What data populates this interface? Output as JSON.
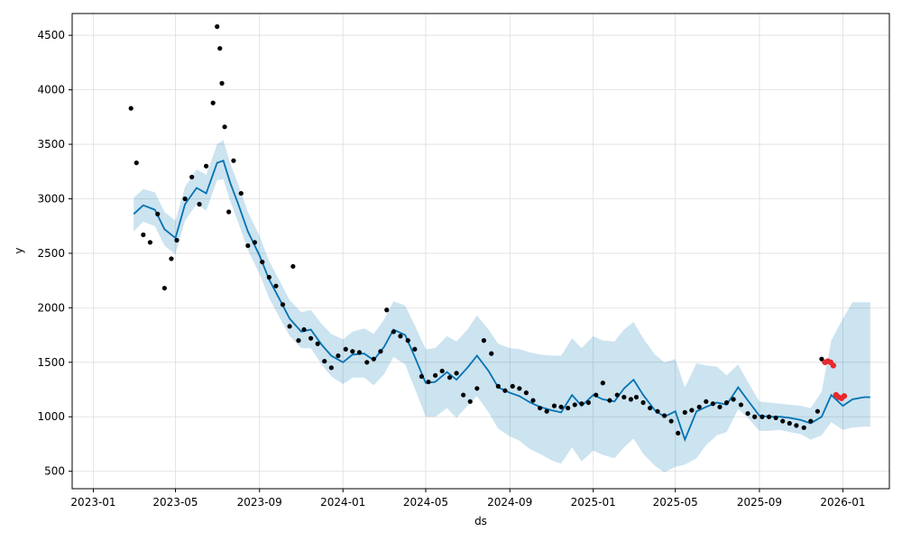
{
  "chart_data": {
    "type": "line",
    "title": "",
    "xlabel": "ds",
    "ylabel": "y",
    "xlim": [
      "2022-12-01",
      "2026-03-10"
    ],
    "ylim": [
      340,
      4700
    ],
    "grid": true,
    "x_ticks": [
      "2023-01",
      "2023-05",
      "2023-09",
      "2024-01",
      "2024-05",
      "2024-09",
      "2025-01",
      "2025-05",
      "2025-09",
      "2026-01"
    ],
    "y_ticks": [
      500,
      1000,
      1500,
      2000,
      2500,
      3000,
      3500,
      4000,
      4500
    ],
    "colors": {
      "forecast": "#0072B2",
      "interval": "#0072B2",
      "observed": "#000000",
      "anomaly": "#e8282b",
      "grid": "#dddddd"
    },
    "series": [
      {
        "kind": "forecast",
        "x": [
          "2023-03-01",
          "2023-03-15",
          "2023-04-01",
          "2023-04-15",
          "2023-05-01",
          "2023-05-15",
          "2023-06-01",
          "2023-06-15",
          "2023-07-01",
          "2023-07-10",
          "2023-07-20",
          "2023-08-01",
          "2023-08-15",
          "2023-09-01",
          "2023-09-15",
          "2023-10-01",
          "2023-10-15",
          "2023-11-01",
          "2023-11-15",
          "2023-12-01",
          "2023-12-15",
          "2024-01-01",
          "2024-01-15",
          "2024-02-01",
          "2024-02-15",
          "2024-03-01",
          "2024-03-15",
          "2024-04-01",
          "2024-04-15",
          "2024-05-01",
          "2024-05-15",
          "2024-06-01",
          "2024-06-15",
          "2024-07-01",
          "2024-07-15",
          "2024-08-01",
          "2024-08-15",
          "2024-09-01",
          "2024-09-15",
          "2024-10-01",
          "2024-10-15",
          "2024-11-01",
          "2024-11-15",
          "2024-12-01",
          "2024-12-15",
          "2025-01-01",
          "2025-01-15",
          "2025-02-01",
          "2025-02-15",
          "2025-03-01",
          "2025-03-15",
          "2025-04-01",
          "2025-04-15",
          "2025-05-01",
          "2025-05-15",
          "2025-06-01",
          "2025-06-15",
          "2025-07-01",
          "2025-07-15",
          "2025-08-01",
          "2025-08-15",
          "2025-09-01",
          "2025-09-15",
          "2025-10-01",
          "2025-10-15",
          "2025-11-01",
          "2025-11-15",
          "2025-12-01",
          "2025-12-15",
          "2026-01-01",
          "2026-01-15",
          "2026-02-01",
          "2026-02-10"
        ],
        "y": [
          2860,
          2940,
          2900,
          2720,
          2640,
          2950,
          3100,
          3050,
          3330,
          3350,
          3150,
          2950,
          2700,
          2480,
          2260,
          2070,
          1900,
          1780,
          1800,
          1660,
          1560,
          1500,
          1570,
          1580,
          1520,
          1640,
          1800,
          1750,
          1550,
          1310,
          1320,
          1410,
          1340,
          1450,
          1560,
          1420,
          1270,
          1220,
          1190,
          1130,
          1090,
          1060,
          1040,
          1200,
          1100,
          1200,
          1160,
          1140,
          1260,
          1340,
          1200,
          1060,
          1000,
          1050,
          790,
          1050,
          1090,
          1130,
          1110,
          1270,
          1150,
          1010,
          1000,
          1000,
          990,
          970,
          940,
          1000,
          1200,
          1100,
          1160,
          1180,
          1180
        ]
      },
      {
        "kind": "interval",
        "x": [
          "2023-03-01",
          "2023-03-15",
          "2023-04-01",
          "2023-04-15",
          "2023-05-01",
          "2023-05-15",
          "2023-06-01",
          "2023-06-15",
          "2023-07-01",
          "2023-07-10",
          "2023-07-20",
          "2023-08-01",
          "2023-08-15",
          "2023-09-01",
          "2023-09-15",
          "2023-10-01",
          "2023-10-15",
          "2023-11-01",
          "2023-11-15",
          "2023-12-01",
          "2023-12-15",
          "2024-01-01",
          "2024-01-15",
          "2024-02-01",
          "2024-02-15",
          "2024-03-01",
          "2024-03-15",
          "2024-04-01",
          "2024-04-15",
          "2024-05-01",
          "2024-05-15",
          "2024-06-01",
          "2024-06-15",
          "2024-07-01",
          "2024-07-15",
          "2024-08-01",
          "2024-08-15",
          "2024-09-01",
          "2024-09-15",
          "2024-10-01",
          "2024-10-15",
          "2024-11-01",
          "2024-11-15",
          "2024-12-01",
          "2024-12-15",
          "2025-01-01",
          "2025-01-15",
          "2025-02-01",
          "2025-02-15",
          "2025-03-01",
          "2025-03-15",
          "2025-04-01",
          "2025-04-15",
          "2025-05-01",
          "2025-05-15",
          "2025-06-01",
          "2025-06-15",
          "2025-07-01",
          "2025-07-15",
          "2025-08-01",
          "2025-08-15",
          "2025-09-01",
          "2025-09-15",
          "2025-10-01",
          "2025-10-15",
          "2025-11-01",
          "2025-11-15",
          "2025-12-01",
          "2025-12-15",
          "2026-01-01",
          "2026-01-15",
          "2026-02-01",
          "2026-02-10"
        ],
        "upper": [
          3010,
          3090,
          3060,
          2880,
          2800,
          3110,
          3270,
          3220,
          3500,
          3540,
          3330,
          3130,
          2880,
          2660,
          2430,
          2240,
          2070,
          1960,
          1980,
          1850,
          1760,
          1710,
          1780,
          1810,
          1760,
          1890,
          2060,
          2020,
          1840,
          1620,
          1630,
          1740,
          1690,
          1800,
          1930,
          1800,
          1670,
          1630,
          1620,
          1590,
          1570,
          1560,
          1560,
          1720,
          1630,
          1740,
          1700,
          1690,
          1800,
          1870,
          1720,
          1570,
          1500,
          1530,
          1270,
          1490,
          1470,
          1460,
          1380,
          1480,
          1320,
          1140,
          1130,
          1120,
          1110,
          1100,
          1080,
          1230,
          1700,
          1900,
          2050,
          2050,
          2050
        ],
        "lower": [
          2700,
          2790,
          2750,
          2570,
          2490,
          2800,
          2950,
          2890,
          3170,
          3180,
          2980,
          2780,
          2530,
          2310,
          2090,
          1900,
          1740,
          1630,
          1630,
          1480,
          1370,
          1300,
          1360,
          1360,
          1290,
          1390,
          1550,
          1480,
          1260,
          1000,
          1000,
          1080,
          990,
          1100,
          1190,
          1040,
          890,
          820,
          780,
          700,
          660,
          600,
          570,
          720,
          590,
          690,
          650,
          620,
          720,
          800,
          660,
          550,
          490,
          540,
          560,
          620,
          740,
          830,
          860,
          1070,
          990,
          870,
          870,
          880,
          860,
          840,
          790,
          830,
          950,
          880,
          900,
          910,
          910
        ]
      },
      {
        "kind": "observed",
        "x": [
          "2023-02-25",
          "2023-03-05",
          "2023-03-15",
          "2023-03-25",
          "2023-04-05",
          "2023-04-15",
          "2023-04-25",
          "2023-05-03",
          "2023-05-15",
          "2023-05-25",
          "2023-06-05",
          "2023-06-15",
          "2023-06-25",
          "2023-07-01",
          "2023-07-05",
          "2023-07-08",
          "2023-07-12",
          "2023-07-18",
          "2023-07-25",
          "2023-08-05",
          "2023-08-15",
          "2023-08-25",
          "2023-09-05",
          "2023-09-15",
          "2023-09-25",
          "2023-10-05",
          "2023-10-15",
          "2023-10-20",
          "2023-10-28",
          "2023-11-05",
          "2023-11-15",
          "2023-11-25",
          "2023-12-05",
          "2023-12-15",
          "2023-12-25",
          "2024-01-05",
          "2024-01-15",
          "2024-01-25",
          "2024-02-05",
          "2024-02-15",
          "2024-02-25",
          "2024-03-05",
          "2024-03-15",
          "2024-03-25",
          "2024-04-05",
          "2024-04-15",
          "2024-04-25",
          "2024-05-05",
          "2024-05-15",
          "2024-05-25",
          "2024-06-05",
          "2024-06-15",
          "2024-06-25",
          "2024-07-05",
          "2024-07-15",
          "2024-07-25",
          "2024-08-05",
          "2024-08-15",
          "2024-08-25",
          "2024-09-05",
          "2024-09-15",
          "2024-09-25",
          "2024-10-05",
          "2024-10-15",
          "2024-10-25",
          "2024-11-05",
          "2024-11-15",
          "2024-11-25",
          "2024-12-05",
          "2024-12-15",
          "2024-12-25",
          "2025-01-05",
          "2025-01-15",
          "2025-01-25",
          "2025-02-05",
          "2025-02-15",
          "2025-02-25",
          "2025-03-05",
          "2025-03-15",
          "2025-03-25",
          "2025-04-05",
          "2025-04-15",
          "2025-04-25",
          "2025-05-05",
          "2025-05-15",
          "2025-05-25",
          "2025-06-05",
          "2025-06-15",
          "2025-06-25",
          "2025-07-05",
          "2025-07-15",
          "2025-07-25",
          "2025-08-05",
          "2025-08-15",
          "2025-08-25",
          "2025-09-05",
          "2025-09-15",
          "2025-09-25",
          "2025-10-05",
          "2025-10-15",
          "2025-10-25",
          "2025-11-05",
          "2025-11-15",
          "2025-11-25",
          "2025-12-01",
          "2025-12-05"
        ],
        "y": [
          3830,
          3330,
          2670,
          2600,
          2860,
          2180,
          2450,
          2620,
          3000,
          3200,
          2950,
          3300,
          3880,
          4580,
          4380,
          4060,
          3660,
          2880,
          3350,
          3050,
          2570,
          2600,
          2420,
          2280,
          2200,
          2030,
          1830,
          2380,
          1700,
          1800,
          1720,
          1670,
          1510,
          1450,
          1560,
          1620,
          1600,
          1590,
          1500,
          1530,
          1600,
          1980,
          1780,
          1740,
          1700,
          1620,
          1370,
          1320,
          1380,
          1420,
          1360,
          1400,
          1200,
          1140,
          1260,
          1700,
          1580,
          1280,
          1240,
          1280,
          1260,
          1220,
          1150,
          1080,
          1050,
          1100,
          1090,
          1080,
          1110,
          1120,
          1130,
          1200,
          1310,
          1150,
          1200,
          1180,
          1160,
          1180,
          1130,
          1080,
          1050,
          1010,
          960,
          850,
          1040,
          1060,
          1090,
          1140,
          1120,
          1090,
          1130,
          1160,
          1110,
          1030,
          1000,
          1000,
          1000,
          990,
          960,
          940,
          920,
          900,
          960,
          1050,
          1530,
          1500
        ]
      },
      {
        "kind": "anomaly",
        "x": [
          "2025-12-06",
          "2025-12-10",
          "2025-12-14",
          "2025-12-18",
          "2025-12-22",
          "2025-12-26",
          "2025-12-30",
          "2026-01-03"
        ],
        "y": [
          1500,
          1510,
          1500,
          1470,
          1200,
          1180,
          1170,
          1190
        ]
      }
    ]
  }
}
